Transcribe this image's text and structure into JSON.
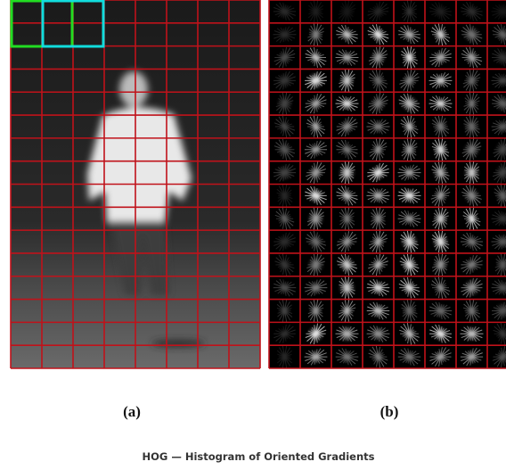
{
  "panels": [
    {
      "label": "(a)"
    },
    {
      "label": "(b)"
    }
  ],
  "caption": "HOG — Histogram of Oriented Gradients"
}
